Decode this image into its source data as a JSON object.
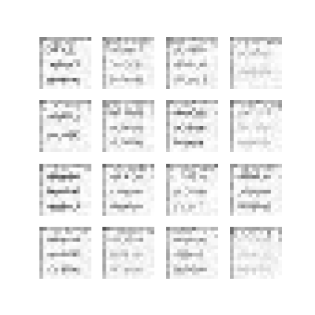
{
  "figure": {
    "rows": 4,
    "cols": 4,
    "cells_per_side": 14,
    "palette": "grayscale",
    "background": "#ffffff",
    "tiles": [
      {
        "grid": 3,
        "strength": 0.85
      },
      {
        "grid": 3,
        "strength": 0.45
      },
      {
        "grid": 3,
        "strength": 0.55
      },
      {
        "grid": 2,
        "strength": 0.3
      },
      {
        "grid": 2,
        "strength": 0.75
      },
      {
        "grid": 3,
        "strength": 0.6
      },
      {
        "grid": 3,
        "strength": 0.7
      },
      {
        "grid": 3,
        "strength": 0.25
      },
      {
        "grid": 3,
        "strength": 0.95
      },
      {
        "grid": 3,
        "strength": 0.65
      },
      {
        "grid": 3,
        "strength": 0.5
      },
      {
        "grid": 3,
        "strength": 0.7
      },
      {
        "grid": 3,
        "strength": 0.6
      },
      {
        "grid": 3,
        "strength": 0.35
      },
      {
        "grid": 3,
        "strength": 0.55
      },
      {
        "grid": 3,
        "strength": 0.2
      }
    ]
  }
}
